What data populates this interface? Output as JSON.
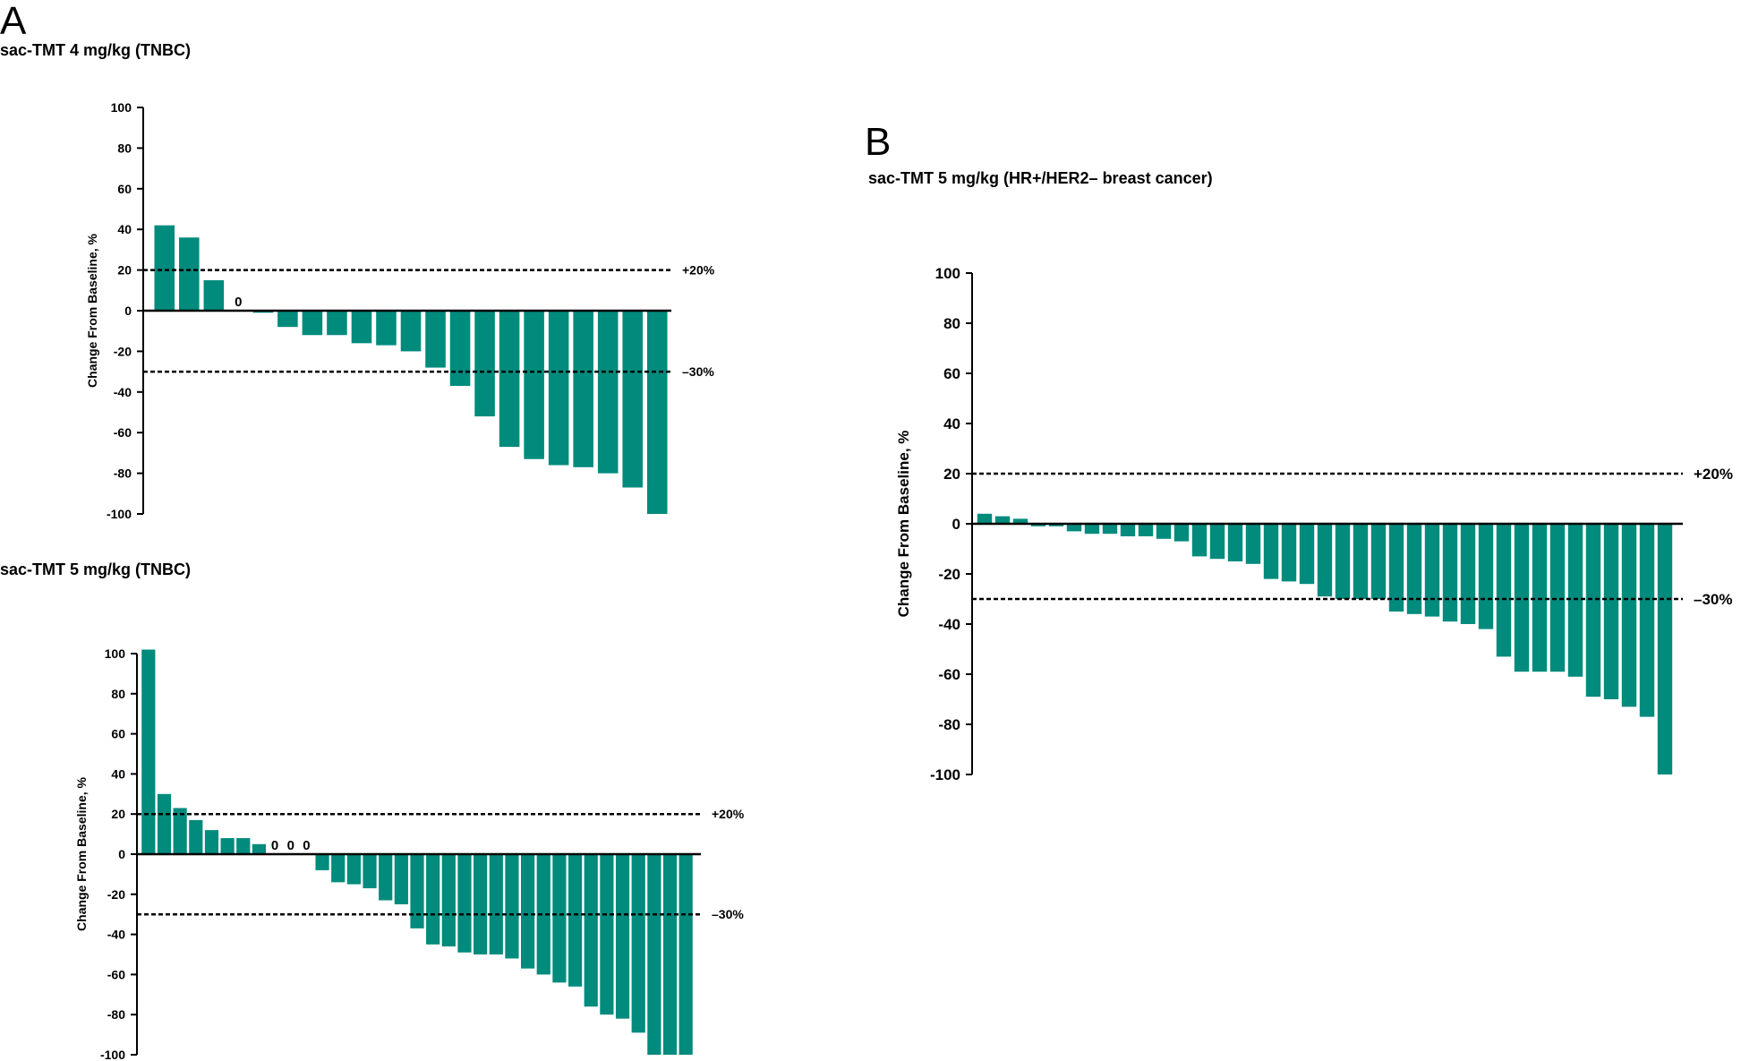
{
  "colors": {
    "bar": "#008b7d",
    "axis": "#000000",
    "ref_line": "#000000"
  },
  "panels": {
    "a": {
      "letter": "A"
    },
    "b": {
      "letter": "B"
    }
  },
  "chart_data": [
    {
      "type": "bar",
      "panel": "A",
      "title": "sac-TMT 4 mg/kg (TNBC)",
      "ylabel": "Change  From Baseline, %",
      "ylim": [
        -100,
        100
      ],
      "yticks": [
        100,
        80,
        60,
        40,
        20,
        0,
        -20,
        -40,
        -60,
        -80,
        -100
      ],
      "values": [
        42,
        36,
        15,
        0,
        -1,
        -8,
        -12,
        -12,
        -16,
        -17,
        -20,
        -28,
        -37,
        -52,
        -67,
        -73,
        -76,
        -77,
        -80,
        -87,
        -100
      ],
      "zero_labels": [
        "0"
      ],
      "reference_lines": [
        {
          "value": 20,
          "label": "+20%"
        },
        {
          "value": -30,
          "label": "–30%"
        }
      ]
    },
    {
      "type": "bar",
      "panel": "A",
      "title": "sac-TMT 5 mg/kg (TNBC)",
      "ylabel": "Change  From Baseline, %",
      "ylim": [
        -100,
        100
      ],
      "yticks": [
        100,
        80,
        60,
        40,
        20,
        0,
        -20,
        -40,
        -60,
        -80,
        -100
      ],
      "values": [
        102,
        30,
        23,
        17,
        12,
        8,
        8,
        5,
        0,
        0,
        0,
        -8,
        -14,
        -15,
        -17,
        -23,
        -25,
        -37,
        -45,
        -46,
        -49,
        -50,
        -50,
        -52,
        -57,
        -60,
        -64,
        -66,
        -76,
        -80,
        -82,
        -89,
        -100,
        -100,
        -100
      ],
      "zero_labels": [
        "0",
        "0",
        "0"
      ],
      "reference_lines": [
        {
          "value": 20,
          "label": "+20%"
        },
        {
          "value": -30,
          "label": "–30%"
        }
      ]
    },
    {
      "type": "bar",
      "panel": "B",
      "title": "sac-TMT 5 mg/kg (HR+/HER2– breast cancer)",
      "ylabel": "Change  From Baseline, %",
      "ylim": [
        -100,
        100
      ],
      "yticks": [
        100,
        80,
        60,
        40,
        20,
        0,
        -20,
        -40,
        -60,
        -80,
        -100
      ],
      "values": [
        4,
        3,
        2,
        -1,
        -1,
        -3,
        -4,
        -4,
        -5,
        -5,
        -6,
        -7,
        -13,
        -14,
        -15,
        -16,
        -22,
        -23,
        -24,
        -29,
        -30,
        -30,
        -30,
        -35,
        -36,
        -37,
        -39,
        -40,
        -42,
        -53,
        -59,
        -59,
        -59,
        -61,
        -69,
        -70,
        -73,
        -77,
        -100
      ],
      "zero_labels": [],
      "reference_lines": [
        {
          "value": 20,
          "label": "+20%"
        },
        {
          "value": -30,
          "label": "–30%"
        }
      ]
    }
  ]
}
